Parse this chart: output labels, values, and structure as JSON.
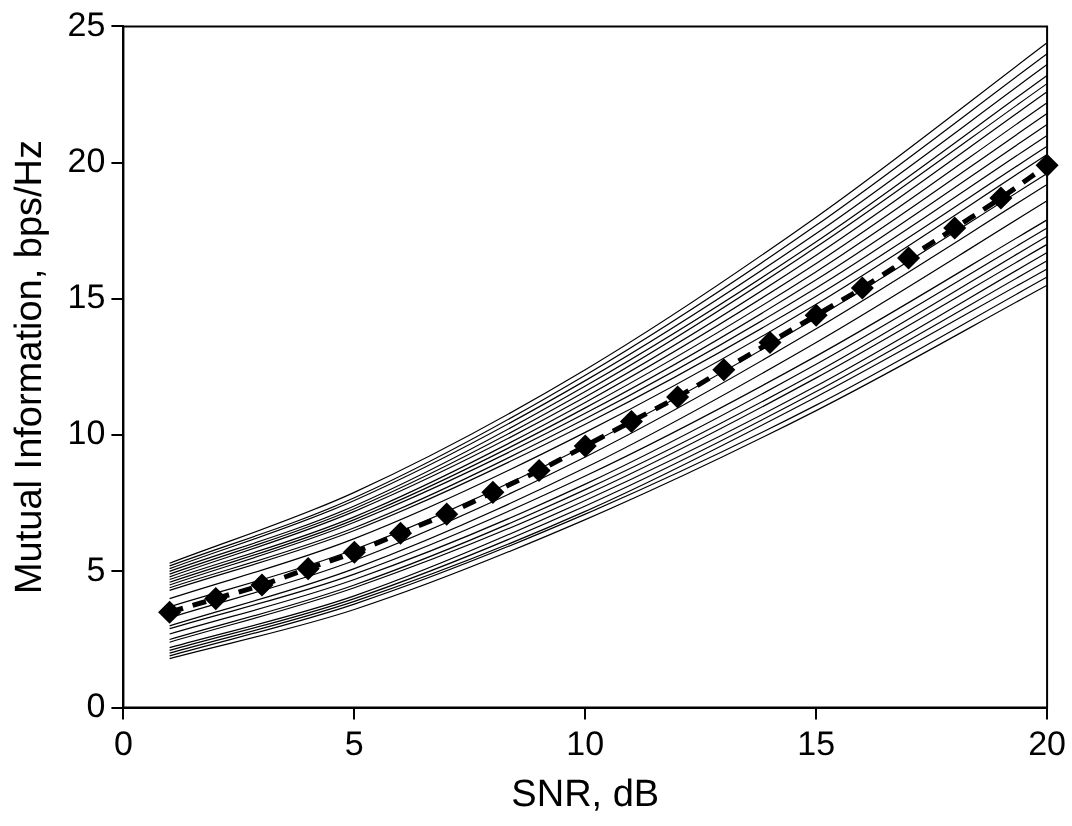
{
  "chart_data": {
    "type": "line",
    "xlabel": "SNR, dB",
    "ylabel": "Mutual Information, bps/Hz",
    "xlim": [
      0,
      20
    ],
    "xticks": [
      0,
      5,
      10,
      15,
      20
    ],
    "ylim": [
      0,
      25
    ],
    "yticks": [
      0,
      5,
      10,
      15,
      20,
      25
    ],
    "grid": false,
    "legend": false,
    "x": [
      1,
      2,
      3,
      4,
      5,
      6,
      7,
      8,
      9,
      10,
      11,
      12,
      13,
      14,
      15,
      16,
      17,
      18,
      19,
      20
    ],
    "series": [
      {
        "color": "#000000",
        "marker": "diamond",
        "line_style": "dashed",
        "values": [
          3.5,
          4.0,
          4.5,
          5.1,
          5.7,
          6.4,
          7.1,
          7.9,
          8.7,
          9.6,
          10.5,
          11.4,
          12.4,
          13.4,
          14.4,
          15.4,
          16.5,
          17.6,
          18.7,
          19.9
        ]
      },
      {
        "color": "#000000",
        "marker": "none",
        "line_style": "solid",
        "x": [
          1,
          5,
          10,
          15,
          20
        ],
        "values": [
          5.3,
          7.9,
          12.4,
          18.0,
          24.4
        ]
      },
      {
        "color": "#000000",
        "marker": "none",
        "line_style": "solid",
        "x": [
          1,
          5,
          10,
          15,
          20
        ],
        "values": [
          5.2,
          7.7,
          12.2,
          17.7,
          24.0
        ]
      },
      {
        "color": "#000000",
        "marker": "none",
        "line_style": "solid",
        "x": [
          1,
          5,
          10,
          15,
          20
        ],
        "values": [
          5.1,
          7.6,
          12.0,
          17.4,
          23.6
        ]
      },
      {
        "color": "#000000",
        "marker": "none",
        "line_style": "solid",
        "x": [
          1,
          5,
          10,
          15,
          20
        ],
        "values": [
          5.0,
          7.4,
          11.8,
          17.1,
          23.2
        ]
      },
      {
        "color": "#000000",
        "marker": "none",
        "line_style": "solid",
        "x": [
          1,
          5,
          10,
          15,
          20
        ],
        "values": [
          4.9,
          7.3,
          11.6,
          16.9,
          22.9
        ]
      },
      {
        "color": "#000000",
        "marker": "none",
        "line_style": "solid",
        "x": [
          1,
          5,
          10,
          15,
          20
        ],
        "values": [
          4.8,
          7.2,
          11.4,
          16.6,
          22.6
        ]
      },
      {
        "color": "#000000",
        "marker": "none",
        "line_style": "solid",
        "x": [
          1,
          5,
          10,
          15,
          20
        ],
        "values": [
          4.7,
          7.0,
          11.2,
          16.3,
          22.2
        ]
      },
      {
        "color": "#000000",
        "marker": "none",
        "line_style": "solid",
        "x": [
          1,
          5,
          10,
          15,
          20
        ],
        "values": [
          4.6,
          6.9,
          11.0,
          16.0,
          21.8
        ]
      },
      {
        "color": "#000000",
        "marker": "none",
        "line_style": "solid",
        "x": [
          1,
          5,
          10,
          15,
          20
        ],
        "values": [
          4.5,
          6.8,
          10.8,
          15.7,
          21.4
        ]
      },
      {
        "color": "#000000",
        "marker": "none",
        "line_style": "solid",
        "x": [
          1,
          5,
          10,
          15,
          20
        ],
        "values": [
          4.4,
          6.6,
          10.6,
          15.4,
          21.0
        ]
      },
      {
        "color": "#000000",
        "marker": "none",
        "line_style": "solid",
        "x": [
          1,
          5,
          10,
          15,
          20
        ],
        "values": [
          4.3,
          6.5,
          10.4,
          15.1,
          20.6
        ]
      },
      {
        "color": "#000000",
        "marker": "none",
        "line_style": "solid",
        "x": [
          1,
          5,
          10,
          15,
          20
        ],
        "values": [
          4.0,
          6.2,
          10.1,
          14.8,
          20.3
        ]
      },
      {
        "color": "#000000",
        "marker": "none",
        "line_style": "solid",
        "x": [
          1,
          5,
          10,
          15,
          20
        ],
        "values": [
          3.7,
          5.8,
          9.6,
          14.3,
          19.6
        ]
      },
      {
        "color": "#000000",
        "marker": "none",
        "line_style": "solid",
        "x": [
          1,
          5,
          10,
          15,
          20
        ],
        "values": [
          3.3,
          5.4,
          9.2,
          13.9,
          19.2
        ]
      },
      {
        "color": "#000000",
        "marker": "none",
        "line_style": "solid",
        "x": [
          1,
          5,
          10,
          15,
          20
        ],
        "values": [
          3.0,
          5.1,
          8.8,
          13.4,
          18.6
        ]
      },
      {
        "color": "#000000",
        "marker": "none",
        "line_style": "solid",
        "x": [
          1,
          5,
          10,
          15,
          20
        ],
        "values": [
          2.9,
          4.9,
          8.5,
          12.9,
          17.9
        ]
      },
      {
        "color": "#000000",
        "marker": "none",
        "line_style": "solid",
        "x": [
          1,
          5,
          10,
          15,
          20
        ],
        "values": [
          2.7,
          4.7,
          8.2,
          12.6,
          17.6
        ]
      },
      {
        "color": "#000000",
        "marker": "none",
        "line_style": "solid",
        "x": [
          1,
          5,
          10,
          15,
          20
        ],
        "values": [
          2.5,
          4.5,
          8.0,
          12.3,
          17.3
        ]
      },
      {
        "color": "#000000",
        "marker": "none",
        "line_style": "solid",
        "x": [
          1,
          5,
          10,
          15,
          20
        ],
        "values": [
          2.4,
          4.4,
          7.8,
          12.1,
          17.0
        ]
      },
      {
        "color": "#000000",
        "marker": "none",
        "line_style": "solid",
        "x": [
          1,
          5,
          10,
          15,
          20
        ],
        "values": [
          2.2,
          4.1,
          7.6,
          11.8,
          16.7
        ]
      },
      {
        "color": "#000000",
        "marker": "none",
        "line_style": "solid",
        "x": [
          1,
          5,
          10,
          15,
          20
        ],
        "values": [
          2.1,
          4.0,
          7.4,
          11.6,
          16.4
        ]
      },
      {
        "color": "#000000",
        "marker": "none",
        "line_style": "solid",
        "x": [
          1,
          5,
          10,
          15,
          20
        ],
        "values": [
          2.0,
          3.9,
          7.2,
          11.4,
          16.1
        ]
      },
      {
        "color": "#000000",
        "marker": "none",
        "line_style": "solid",
        "x": [
          1,
          5,
          10,
          15,
          20
        ],
        "values": [
          1.9,
          3.8,
          7.1,
          11.1,
          15.8
        ]
      },
      {
        "color": "#000000",
        "marker": "none",
        "line_style": "solid",
        "x": [
          1,
          5,
          10,
          15,
          20
        ],
        "values": [
          1.8,
          3.6,
          6.9,
          10.9,
          15.5
        ]
      }
    ]
  }
}
